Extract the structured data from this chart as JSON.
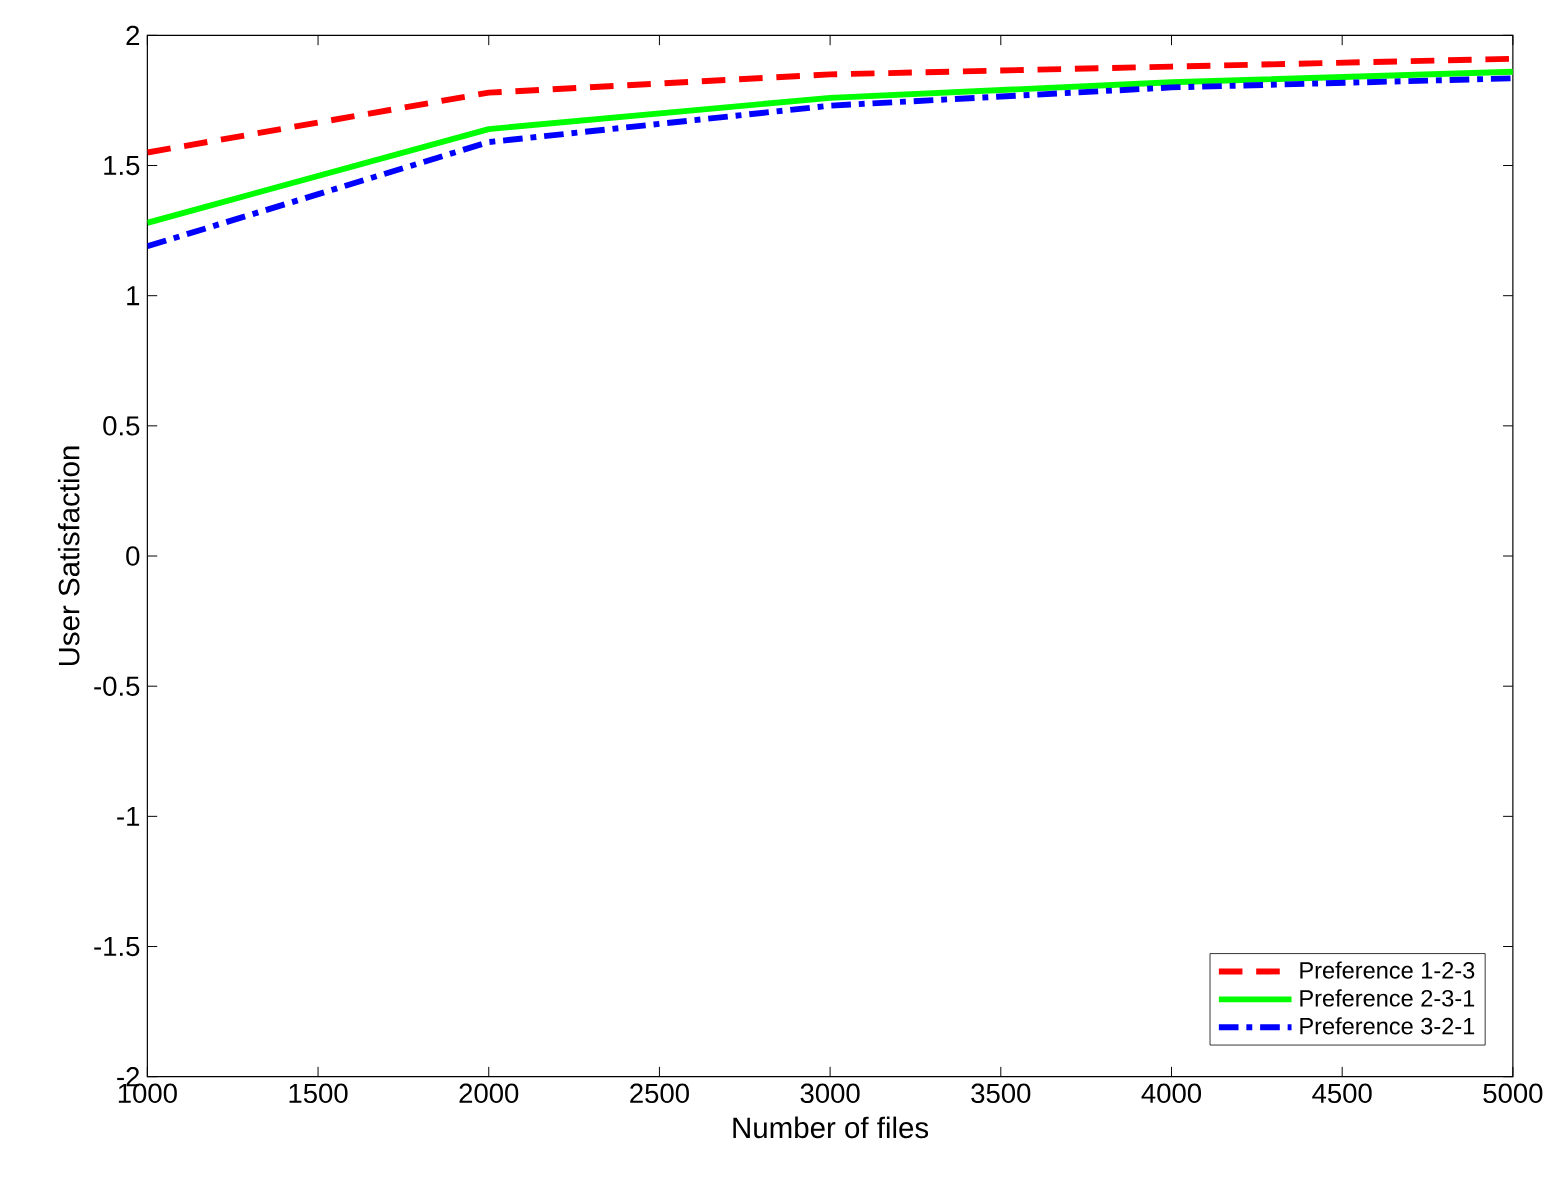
{
  "chart_data": {
    "type": "line",
    "xlabel": "Number of files",
    "ylabel": "User Satisfaction",
    "x": [
      1000,
      2000,
      3000,
      4000,
      5000
    ],
    "series": [
      {
        "name": "Preference 1-2-3",
        "color": "#ff0000",
        "line_style": "dashed",
        "values": [
          1.55,
          1.78,
          1.85,
          1.88,
          1.91
        ]
      },
      {
        "name": "Preference 2-3-1",
        "color": "#00ff00",
        "line_style": "solid",
        "values": [
          1.28,
          1.64,
          1.76,
          1.82,
          1.86
        ]
      },
      {
        "name": "Preference 3-2-1",
        "color": "#0000ff",
        "line_style": "dashdot",
        "values": [
          1.19,
          1.59,
          1.73,
          1.8,
          1.835
        ]
      }
    ],
    "xlim": [
      1000,
      5000
    ],
    "ylim": [
      -2,
      2
    ],
    "xticks": [
      1000,
      1500,
      2000,
      2500,
      3000,
      3500,
      4000,
      4500,
      5000
    ],
    "yticks": [
      -2,
      -1.5,
      -1,
      -0.5,
      0,
      0.5,
      1,
      1.5,
      2
    ],
    "legend": "bottom right",
    "grid": false
  }
}
